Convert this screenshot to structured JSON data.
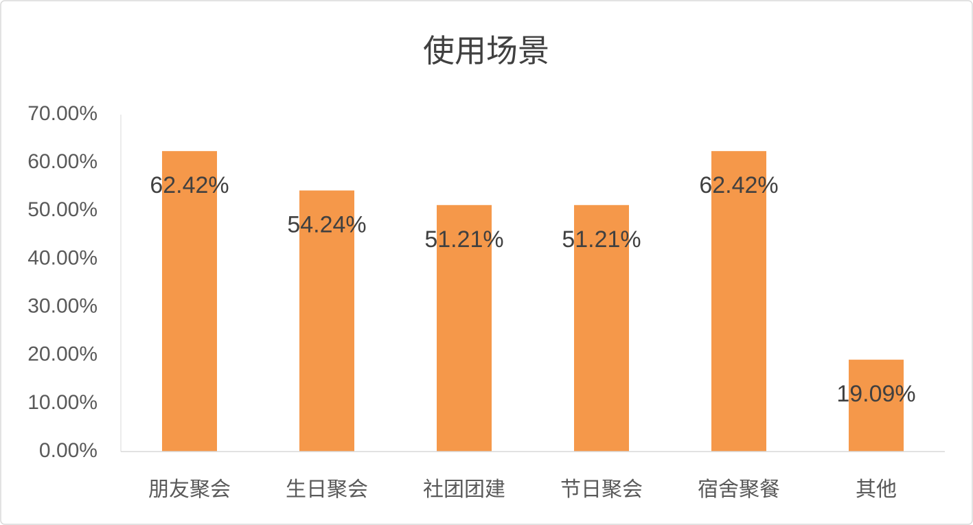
{
  "chart_data": {
    "type": "bar",
    "title": "使用场景",
    "categories": [
      "朋友聚会",
      "生日聚会",
      "社团团建",
      "节日聚会",
      "宿舍聚餐",
      "其他"
    ],
    "values": [
      62.42,
      54.24,
      51.21,
      51.21,
      62.42,
      19.09
    ],
    "value_labels": [
      "62.42%",
      "54.24%",
      "51.21%",
      "51.21%",
      "62.42%",
      "19.09%"
    ],
    "color": "#f5984a",
    "ylim": [
      0,
      70
    ],
    "yticks": [
      {
        "value": 0,
        "label": "0.00%"
      },
      {
        "value": 10,
        "label": "10.00%"
      },
      {
        "value": 20,
        "label": "20.00%"
      },
      {
        "value": 30,
        "label": "30.00%"
      },
      {
        "value": 40,
        "label": "40.00%"
      },
      {
        "value": 50,
        "label": "50.00%"
      },
      {
        "value": 60,
        "label": "60.00%"
      },
      {
        "value": 70,
        "label": "70.00%"
      }
    ],
    "grid": false
  }
}
